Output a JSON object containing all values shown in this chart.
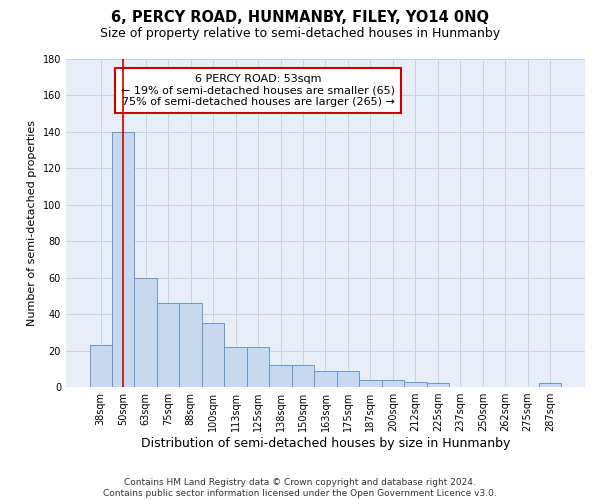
{
  "title": "6, PERCY ROAD, HUNMANBY, FILEY, YO14 0NQ",
  "subtitle": "Size of property relative to semi-detached houses in Hunmanby",
  "xlabel": "Distribution of semi-detached houses by size in Hunmanby",
  "ylabel": "Number of semi-detached properties",
  "categories": [
    "38sqm",
    "50sqm",
    "63sqm",
    "75sqm",
    "88sqm",
    "100sqm",
    "113sqm",
    "125sqm",
    "138sqm",
    "150sqm",
    "163sqm",
    "175sqm",
    "187sqm",
    "200sqm",
    "212sqm",
    "225sqm",
    "237sqm",
    "250sqm",
    "262sqm",
    "275sqm",
    "287sqm"
  ],
  "values": [
    23,
    140,
    60,
    46,
    46,
    35,
    22,
    22,
    12,
    12,
    9,
    9,
    4,
    4,
    3,
    2,
    0,
    0,
    0,
    0,
    2
  ],
  "bar_color": "#c8d8ee",
  "bar_edge_color": "#6699cc",
  "red_line_x": 1.0,
  "annotation_line1": "6 PERCY ROAD: 53sqm",
  "annotation_line2": "← 19% of semi-detached houses are smaller (65)",
  "annotation_line3": "75% of semi-detached houses are larger (265) →",
  "annotation_box_color": "#ffffff",
  "annotation_box_edge": "#cc0000",
  "ylim": [
    0,
    180
  ],
  "yticks": [
    0,
    20,
    40,
    60,
    80,
    100,
    120,
    140,
    160,
    180
  ],
  "grid_color": "#c8d4e3",
  "background_color": "#e8eef8",
  "footnote": "Contains HM Land Registry data © Crown copyright and database right 2024.\nContains public sector information licensed under the Open Government Licence v3.0.",
  "title_fontsize": 10.5,
  "subtitle_fontsize": 9,
  "xlabel_fontsize": 9,
  "ylabel_fontsize": 8,
  "tick_fontsize": 7,
  "annotation_fontsize": 8,
  "footnote_fontsize": 6.5
}
